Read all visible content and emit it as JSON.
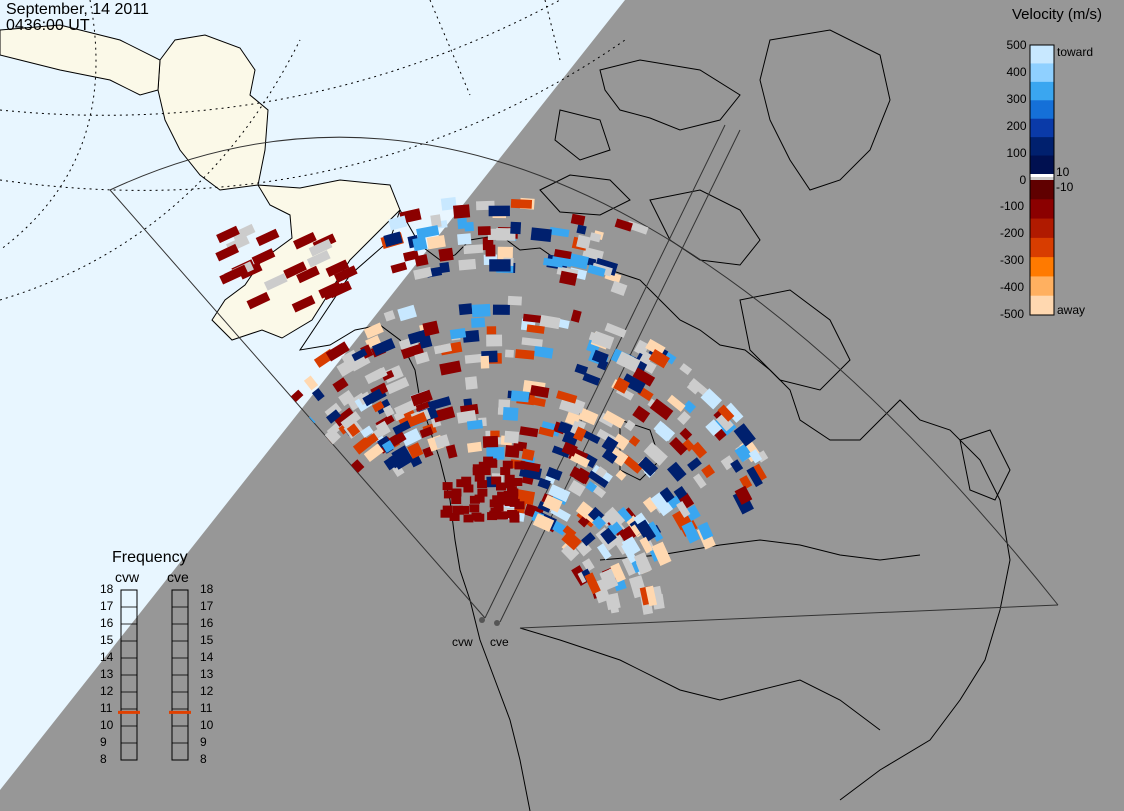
{
  "header": {
    "date": "September, 14 2011",
    "time": "0436:00 UT"
  },
  "velocity_scale": {
    "title": "Velocity (m/s)",
    "ticks": [
      "500",
      "400",
      "300",
      "200",
      "100",
      "10",
      "0",
      "-10",
      "-100",
      "-200",
      "-300",
      "-400",
      "-500"
    ],
    "toward_label": "toward",
    "away_label": "away",
    "colors_toward": [
      "#c8e8ff",
      "#8fd0ff",
      "#3aa6f0",
      "#1570d8",
      "#0a3aa8",
      "#00206e",
      "#001050"
    ],
    "colors_away": [
      "#600000",
      "#8b0000",
      "#b01a00",
      "#d83d00",
      "#ff7a00",
      "#ffb060",
      "#ffd8b0"
    ],
    "ground_scatter_color": "#cccccc"
  },
  "frequency_panel": {
    "title": "Frequency",
    "radars": [
      {
        "name": "cvw",
        "frequency_mhz": 10.8
      },
      {
        "name": "cve",
        "frequency_mhz": 10.8
      }
    ],
    "ticks": [
      "18",
      "17",
      "16",
      "15",
      "14",
      "13",
      "12",
      "11",
      "10",
      "9",
      "8"
    ],
    "marker_color": "#e04000"
  },
  "radar_sites": [
    {
      "name": "cvw"
    },
    {
      "name": "cve"
    }
  ],
  "map_colors": {
    "night_side": "#979797",
    "day_ocean": "#e8f6ff",
    "day_land": "#fbf9e8"
  }
}
